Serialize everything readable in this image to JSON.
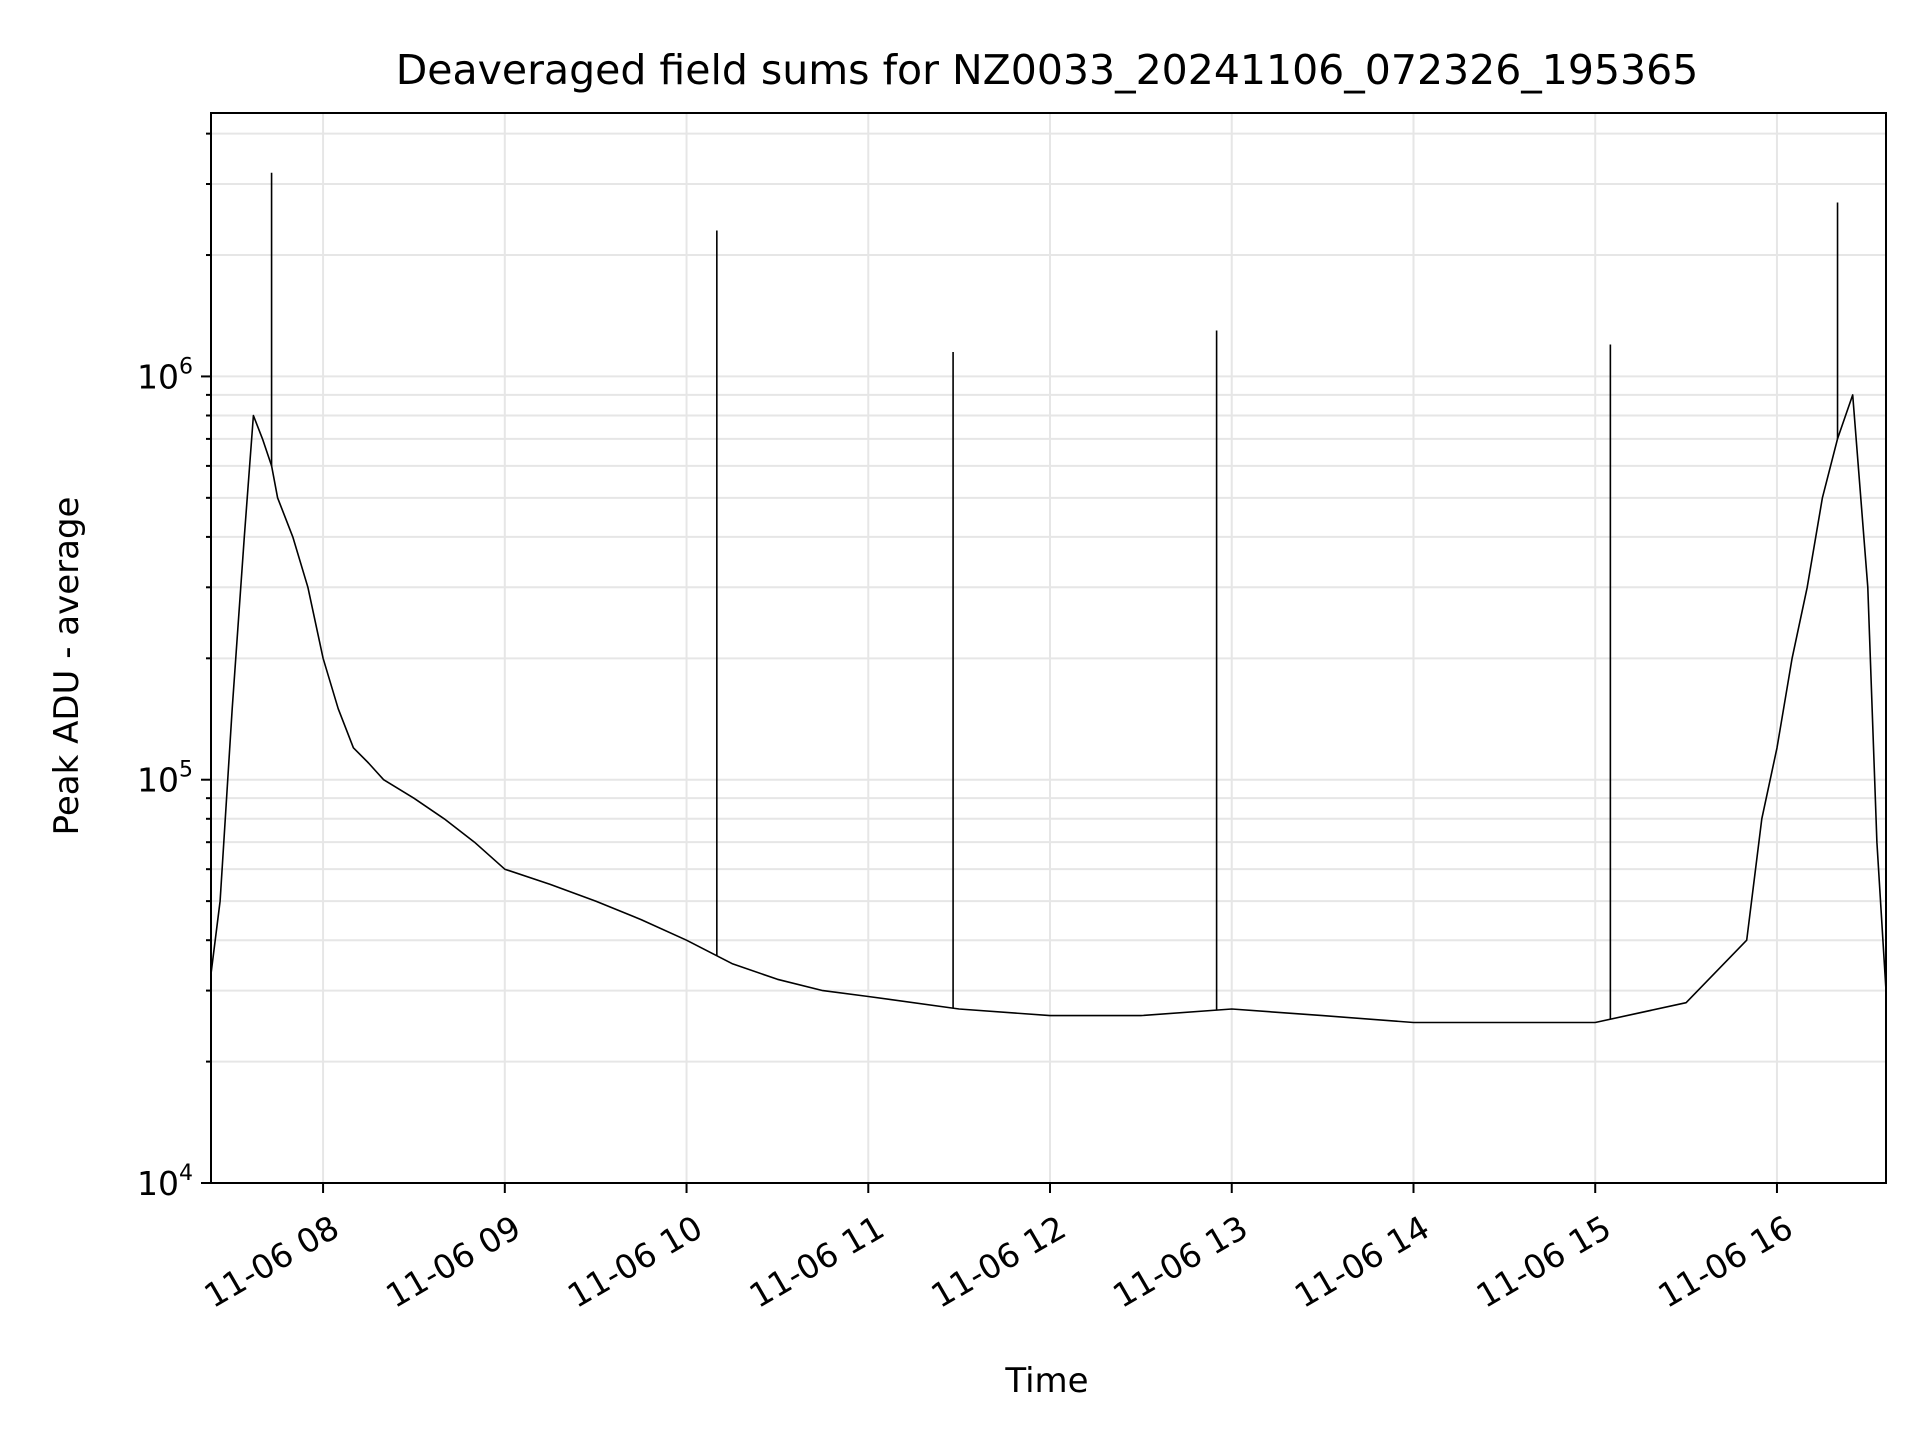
{
  "chart_data": {
    "type": "line",
    "title": "Deaveraged field sums for NZ0033_20241106_072326_195365",
    "xlabel": "Time",
    "ylabel": "Peak ADU - average",
    "yscale": "log",
    "ylim": [
      10000,
      4500000
    ],
    "xlim": [
      "2024-11-06 07:23",
      "2024-11-06 16:36"
    ],
    "grid": true,
    "colors": {
      "line": "#000000",
      "grid": "#e6e6e6",
      "axes": "#000000"
    },
    "x_ticks": [
      "11-06 08",
      "11-06 09",
      "11-06 10",
      "11-06 11",
      "11-06 12",
      "11-06 13",
      "11-06 14",
      "11-06 15",
      "11-06 16"
    ],
    "y_ticks": [
      {
        "value": 10000,
        "base": "10",
        "exp": "4"
      },
      {
        "value": 100000,
        "base": "10",
        "exp": "5"
      },
      {
        "value": 1000000,
        "base": "10",
        "exp": "6"
      }
    ],
    "series": [
      {
        "x": [
          "2024-11-06 07:23",
          "2024-11-06 07:26",
          "2024-11-06 07:30",
          "2024-11-06 07:34",
          "2024-11-06 07:37",
          "2024-11-06 07:40",
          "2024-11-06 07:43",
          "2024-11-06 07:45",
          "2024-11-06 07:50",
          "2024-11-06 07:55",
          "2024-11-06 08:00",
          "2024-11-06 08:05",
          "2024-11-06 08:10",
          "2024-11-06 08:15",
          "2024-11-06 08:20",
          "2024-11-06 08:30",
          "2024-11-06 08:40",
          "2024-11-06 08:50",
          "2024-11-06 09:00",
          "2024-11-06 09:15",
          "2024-11-06 09:30",
          "2024-11-06 09:45",
          "2024-11-06 10:00",
          "2024-11-06 10:15",
          "2024-11-06 10:30",
          "2024-11-06 10:45",
          "2024-11-06 11:00",
          "2024-11-06 11:30",
          "2024-11-06 12:00",
          "2024-11-06 12:30",
          "2024-11-06 13:00",
          "2024-11-06 13:30",
          "2024-11-06 14:00",
          "2024-11-06 14:30",
          "2024-11-06 15:00",
          "2024-11-06 15:30",
          "2024-11-06 15:50",
          "2024-11-06 15:55",
          "2024-11-06 16:00",
          "2024-11-06 16:05",
          "2024-11-06 16:10",
          "2024-11-06 16:15",
          "2024-11-06 16:20",
          "2024-11-06 16:25",
          "2024-11-06 16:30",
          "2024-11-06 16:33",
          "2024-11-06 16:36"
        ],
        "y": [
          33000,
          50000,
          150000,
          400000,
          800000,
          700000,
          600000,
          500000,
          400000,
          300000,
          200000,
          150000,
          120000,
          110000,
          100000,
          90000,
          80000,
          70000,
          60000,
          55000,
          50000,
          45000,
          40000,
          35000,
          32000,
          30000,
          29000,
          27000,
          26000,
          26000,
          27000,
          26000,
          25000,
          25000,
          25000,
          28000,
          40000,
          80000,
          120000,
          200000,
          300000,
          500000,
          700000,
          900000,
          300000,
          70000,
          30000
        ]
      }
    ],
    "spikes": [
      {
        "x": "2024-11-06 07:43",
        "y": 3200000
      },
      {
        "x": "2024-11-06 10:10",
        "y": 2300000
      },
      {
        "x": "2024-11-06 11:28",
        "y": 1150000
      },
      {
        "x": "2024-11-06 12:55",
        "y": 1300000
      },
      {
        "x": "2024-11-06 15:05",
        "y": 1200000
      },
      {
        "x": "2024-11-06 16:20",
        "y": 2700000
      }
    ]
  }
}
